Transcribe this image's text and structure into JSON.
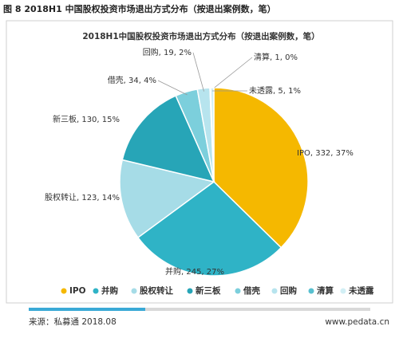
{
  "header": "图 8 2018H1 中国股权投资市场退出方式分布（按退出案例数，笔）",
  "chart_data": {
    "type": "pie",
    "title": "2018H1中国股权投资市场退出方式分布（按退出案例数，笔）",
    "categories": [
      "IPO",
      "并购",
      "股权转让",
      "新三板",
      "借壳",
      "回购",
      "清算",
      "未透露"
    ],
    "values": [
      332,
      245,
      123,
      130,
      34,
      19,
      1,
      5
    ],
    "value_labels": [
      "IPO, 332, 37%",
      "并购, 245, 27%",
      "股权转让, 123, 14%",
      "新三板, 130, 15%",
      "借壳, 34, 4%",
      "回购, 19, 2%",
      "清算, 1, 0%",
      "未透露, 5, 1%"
    ],
    "colors": [
      "#f5b800",
      "#2fb3c6",
      "#a6dce7",
      "#27a5b7",
      "#7ccfdc",
      "#b7e4ee",
      "#58c0d0",
      "#d2eff5"
    ]
  },
  "footer": {
    "source": "来源：私募通 2018.08",
    "site": "www.pedata.cn"
  }
}
